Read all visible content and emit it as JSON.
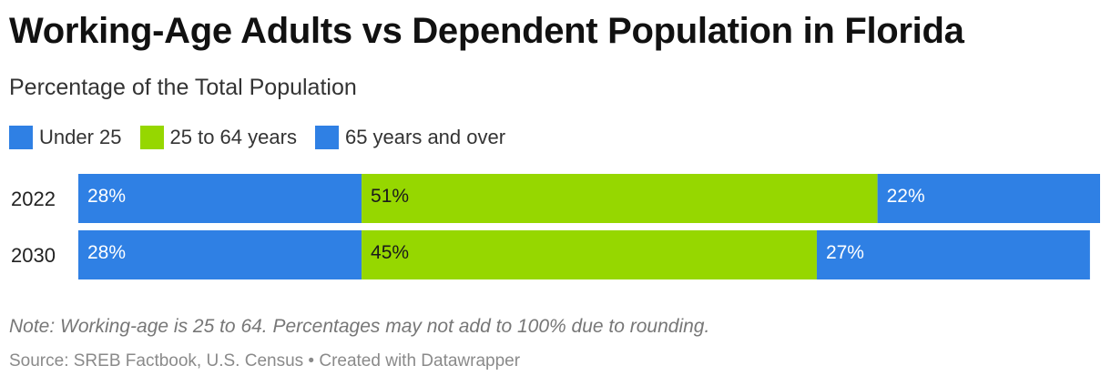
{
  "title": "Working-Age Adults vs Dependent Population in Florida",
  "subtitle": "Percentage of the Total Population",
  "note": "Note: Working-age is 25 to 64. Percentages may not add to 100% due to rounding.",
  "source": "Source: SREB Factbook, U.S. Census • Created with Datawrapper",
  "colors": {
    "under25": "#2f80e4",
    "working": "#96d700",
    "over65": "#2f80e4",
    "label_light": "#ffffff",
    "label_dark": "#1a1a1a"
  },
  "chart_data": {
    "type": "bar",
    "orientation": "horizontal",
    "stacked": true,
    "categories": [
      "2022",
      "2030"
    ],
    "series": [
      {
        "name": "Under 25",
        "values": [
          28,
          28
        ],
        "labels": [
          "28%",
          "28%"
        ]
      },
      {
        "name": "25 to 64 years",
        "values": [
          51,
          45
        ],
        "labels": [
          "51%",
          "45%"
        ]
      },
      {
        "name": "65 years and over",
        "values": [
          22,
          27
        ],
        "labels": [
          "22%",
          "27%"
        ]
      }
    ],
    "xlim": [
      0,
      101
    ],
    "legend": "top-left",
    "grid": false
  }
}
